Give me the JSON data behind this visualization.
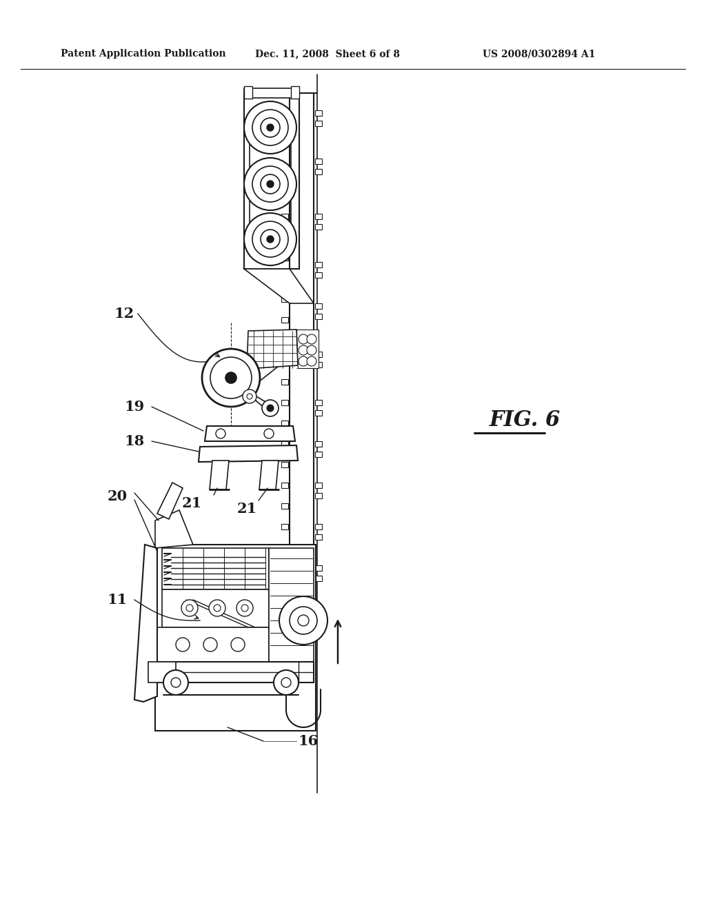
{
  "title_left": "Patent Application Publication",
  "title_middle": "Dec. 11, 2008  Sheet 6 of 8",
  "title_right": "US 2008/0302894 A1",
  "fig_label": "FIG. 6",
  "bg_color": "#ffffff",
  "ink_color": "#1a1a1a"
}
